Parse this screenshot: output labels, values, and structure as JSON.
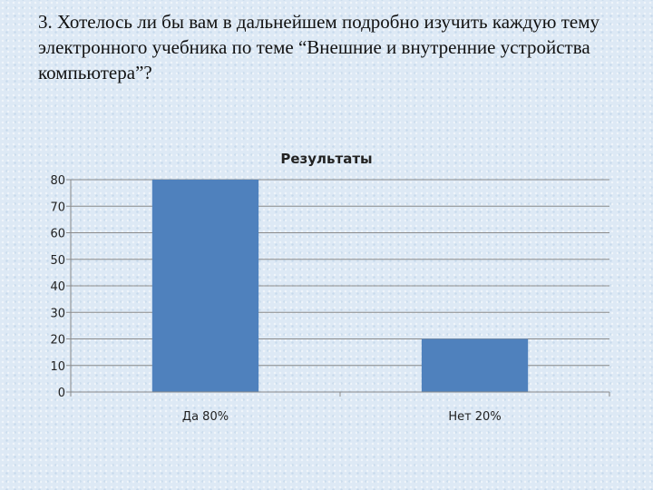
{
  "slide": {
    "question": "3. Хотелось ли бы вам в дальнейшем подробно изучить каждую тему электронного учебника по теме “Внешние и внутренние устройства компьютера”?"
  },
  "chart_data": {
    "type": "bar",
    "title": "Результаты",
    "categories": [
      "Да 80%",
      "Нет 20%"
    ],
    "values": [
      80,
      20
    ],
    "xlabel": "",
    "ylabel": "",
    "ylim": [
      0,
      80
    ],
    "yticks": [
      0,
      10,
      20,
      30,
      40,
      50,
      60,
      70,
      80
    ],
    "grid": true,
    "legend": "none",
    "bar_color": "#4f81bd"
  }
}
